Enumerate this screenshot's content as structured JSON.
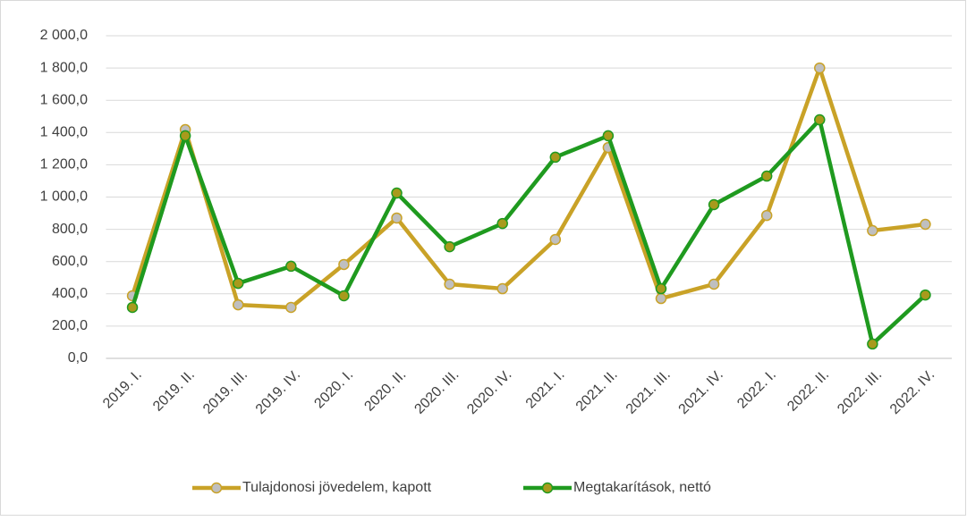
{
  "chart_data": {
    "type": "line",
    "categories": [
      "2019. I.",
      "2019. II.",
      "2019. III.",
      "2019. IV.",
      "2020. I.",
      "2020. II.",
      "2020. III.",
      "2020. IV.",
      "2021. I.",
      "2021. II.",
      "2021. III.",
      "2021. IV.",
      "2022. I.",
      "2022. II.",
      "2022. III.",
      "2022. IV."
    ],
    "series": [
      {
        "name": "Tulajdonosi jövedelem, kapott",
        "color": "#c9a227",
        "marker_fill": "#bfbfbf",
        "values": [
          388,
          1418,
          332,
          316,
          582,
          870,
          460,
          432,
          737,
          1307,
          371,
          460,
          886,
          1800,
          792,
          831
        ]
      },
      {
        "name": "Megtakarítások, nettó",
        "color": "#1f9a1f",
        "marker_fill": "#a89a1c",
        "values": [
          316,
          1380,
          465,
          571,
          388,
          1025,
          692,
          836,
          1247,
          1380,
          432,
          953,
          1130,
          1479,
          89,
          393
        ]
      }
    ],
    "ylim": [
      0,
      2000
    ],
    "yticks": [
      {
        "value": 0,
        "label": "0,0"
      },
      {
        "value": 200,
        "label": "200,0"
      },
      {
        "value": 400,
        "label": "400,0"
      },
      {
        "value": 600,
        "label": "600,0"
      },
      {
        "value": 800,
        "label": "800,0"
      },
      {
        "value": 1000,
        "label": "1 000,0"
      },
      {
        "value": 1200,
        "label": "1 200,0"
      },
      {
        "value": 1400,
        "label": "1 400,0"
      },
      {
        "value": 1600,
        "label": "1 600,0"
      },
      {
        "value": 1800,
        "label": "1 800,0"
      },
      {
        "value": 2000,
        "label": "2 000,0"
      }
    ],
    "grid": true,
    "legend": "bottom"
  }
}
